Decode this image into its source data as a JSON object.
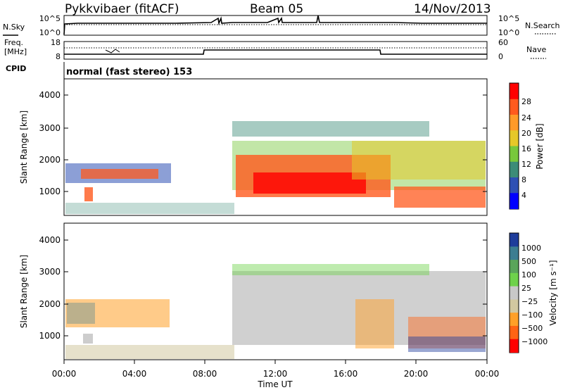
{
  "header": {
    "station": "Pykkvibaer (fitACF)",
    "beam": "Beam 05",
    "date": "14/Nov/2013"
  },
  "noise_panel": {
    "left_label": "N.Sky",
    "left_ticks": [
      "10^5",
      "10^0"
    ],
    "right_ticks": [
      "10^5",
      "10^0"
    ],
    "right_label": "N.Search"
  },
  "freq_panel": {
    "left_label_line1": "Freq.",
    "left_label_line2": "[MHz]",
    "left_ticks": [
      "18",
      "8"
    ],
    "right_ticks": [
      "60",
      "0"
    ],
    "right_label": "Nave"
  },
  "cpid": {
    "label": "CPID",
    "value": "normal (fast stereo) 153"
  },
  "chart_data": [
    {
      "type": "heatmap",
      "name": "power",
      "ylabel": "Slant Range [km]",
      "y_ticks": [
        "4000",
        "3000",
        "2000",
        "1000"
      ],
      "colorbar_label": "Power [dB]",
      "colorbar_ticks": [
        "28",
        "24",
        "20",
        "16",
        "12",
        "8",
        "4"
      ],
      "colorbar_colors": [
        "#ff0000",
        "#ff5a1e",
        "#ff9a28",
        "#e6c828",
        "#78c83c",
        "#3c8c78",
        "#2e50b4",
        "#0000ff"
      ]
    },
    {
      "type": "heatmap",
      "name": "velocity",
      "ylabel": "Slant Range [km]",
      "y_ticks": [
        "4000",
        "3000",
        "2000",
        "1000"
      ],
      "colorbar_label": "Velocity [m s⁻¹]",
      "colorbar_ticks": [
        "1000",
        "500",
        "100",
        "25",
        "−25",
        "−100",
        "−500",
        "−1000"
      ],
      "colorbar_colors": [
        "#1e3c9b",
        "#3c7d91",
        "#5aa55a",
        "#6ed24b",
        "#c8c8c8",
        "#d2c8a0",
        "#ffa028",
        "#ff6414",
        "#ff0000"
      ]
    }
  ],
  "x_axis": {
    "ticks": [
      "00:00",
      "04:00",
      "08:00",
      "12:00",
      "16:00",
      "20:00",
      "00:00"
    ],
    "label": "Time UT"
  }
}
